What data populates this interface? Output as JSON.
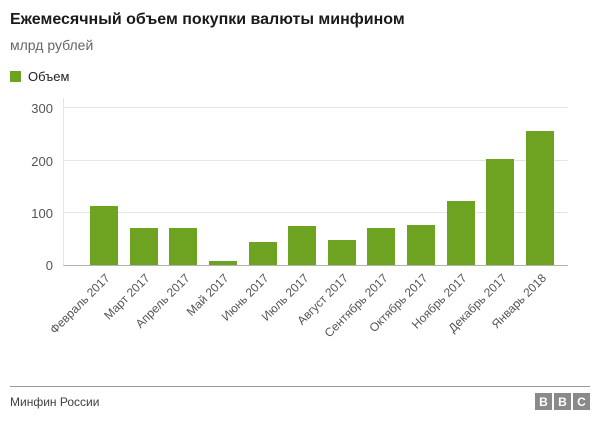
{
  "header": {
    "title": "Ежемесячный объем покупки валюты минфином",
    "subtitle": "млрд рублей"
  },
  "legend": {
    "label": "Объем",
    "color": "#6ea321"
  },
  "chart_data": {
    "type": "bar",
    "title": "Ежемесячный объем покупки валюты минфином",
    "ylabel": "млрд рублей",
    "xlabel": "",
    "series": [
      {
        "name": "Объем",
        "values": [
          113,
          70,
          70,
          8,
          45,
          74,
          48,
          71,
          76,
          123,
          204,
          257
        ]
      }
    ],
    "categories": [
      "Февраль 2017",
      "Март 2017",
      "Апрель 2017",
      "Май 2017",
      "Июнь 2017",
      "Июль 2017",
      "Август 2017",
      "Сентябрь 2017",
      "Октябрь 2017",
      "Ноябрь 2017",
      "Декабрь 2017",
      "Январь 2018"
    ],
    "yticks": [
      0,
      100,
      200,
      300
    ],
    "ylim": [
      0,
      320
    ],
    "bar_color": "#6ea321",
    "grid": true,
    "legend_position": "top-left",
    "x_label_rotation_deg": -45
  },
  "footer": {
    "source": "Минфин России",
    "logo": [
      "B",
      "B",
      "C"
    ]
  }
}
